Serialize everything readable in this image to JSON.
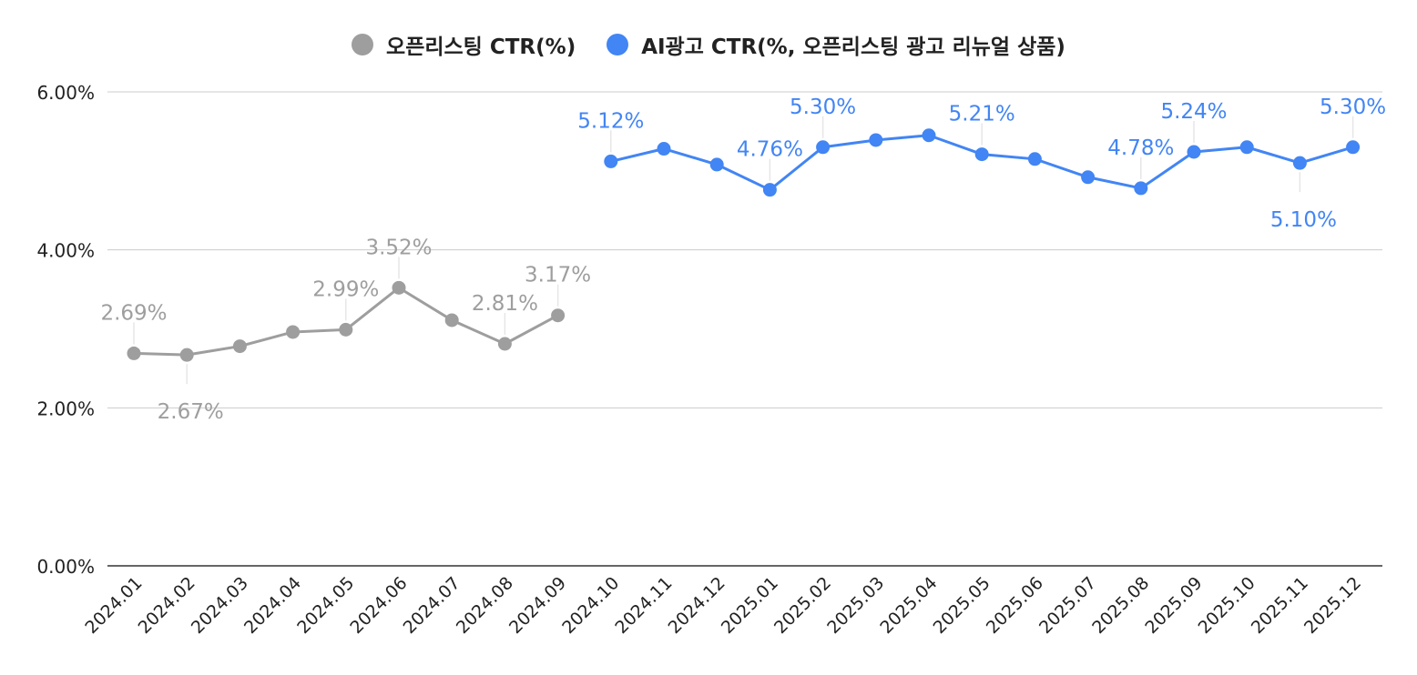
{
  "chart_data": {
    "type": "line",
    "title": "",
    "xlabel": "",
    "ylabel": "",
    "ylim": [
      0,
      6
    ],
    "y_ticks": [
      "0.00%",
      "2.00%",
      "4.00%",
      "6.00%"
    ],
    "grid": true,
    "legend_position": "top-center",
    "categories": [
      "2024.01",
      "2024.02",
      "2024.03",
      "2024.04",
      "2024.05",
      "2024.06",
      "2024.07",
      "2024.08",
      "2024.09",
      "2024.10",
      "2024.11",
      "2024.12",
      "2025.01",
      "2025.02",
      "2025.03",
      "2025.04",
      "2025.05",
      "2025.06",
      "2025.07",
      "2025.08",
      "2025.09",
      "2025.10",
      "2025.11",
      "2025.12"
    ],
    "series": [
      {
        "name": "오픈리스팅 CTR(%)",
        "color": "#9e9e9e",
        "values": [
          2.69,
          2.67,
          2.78,
          2.96,
          2.99,
          3.52,
          3.11,
          2.81,
          3.17,
          null,
          null,
          null,
          null,
          null,
          null,
          null,
          null,
          null,
          null,
          null,
          null,
          null,
          null,
          null
        ],
        "labels": [
          {
            "index": 0,
            "text": "2.69%",
            "pos": "above"
          },
          {
            "index": 1,
            "text": "2.67%",
            "pos": "below"
          },
          {
            "index": 4,
            "text": "2.99%",
            "pos": "above"
          },
          {
            "index": 5,
            "text": "3.52%",
            "pos": "above"
          },
          {
            "index": 7,
            "text": "2.81%",
            "pos": "above"
          },
          {
            "index": 8,
            "text": "3.17%",
            "pos": "above"
          }
        ]
      },
      {
        "name": "AI광고 CTR(%, 오픈리스팅 광고 리뉴얼 상품)",
        "color": "#4285f4",
        "values": [
          null,
          null,
          null,
          null,
          null,
          null,
          null,
          null,
          null,
          5.12,
          5.28,
          5.08,
          4.76,
          5.3,
          5.39,
          5.45,
          5.21,
          5.15,
          4.92,
          4.78,
          5.24,
          5.3,
          5.1,
          5.3
        ],
        "labels": [
          {
            "index": 9,
            "text": "5.12%",
            "pos": "above"
          },
          {
            "index": 12,
            "text": "4.76%",
            "pos": "above"
          },
          {
            "index": 13,
            "text": "5.30%",
            "pos": "above"
          },
          {
            "index": 16,
            "text": "5.21%",
            "pos": "above"
          },
          {
            "index": 19,
            "text": "4.78%",
            "pos": "above"
          },
          {
            "index": 20,
            "text": "5.24%",
            "pos": "above"
          },
          {
            "index": 22,
            "text": "5.10%",
            "pos": "below"
          },
          {
            "index": 23,
            "text": "5.30%",
            "pos": "above"
          }
        ]
      }
    ]
  }
}
